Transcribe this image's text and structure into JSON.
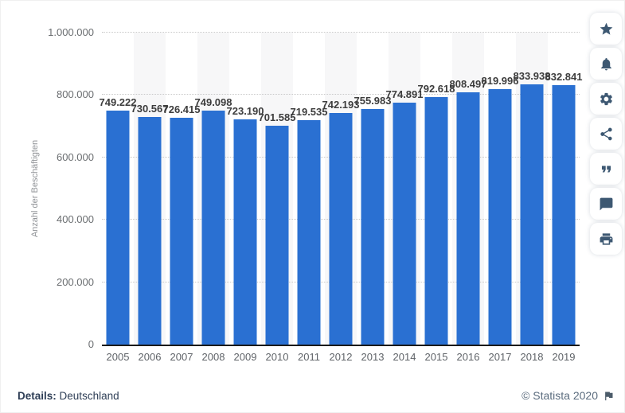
{
  "chart_data": {
    "type": "bar",
    "title": "",
    "categories": [
      "2005",
      "2006",
      "2007",
      "2008",
      "2009",
      "2010",
      "2011",
      "2012",
      "2013",
      "2014",
      "2015",
      "2016",
      "2017",
      "2018",
      "2019"
    ],
    "values": [
      749222,
      730567,
      726415,
      749098,
      723190,
      701585,
      719535,
      742193,
      755983,
      774891,
      792618,
      808497,
      819996,
      833938,
      832841
    ],
    "value_labels": [
      "749.222",
      "730.567",
      "726.415",
      "749.098",
      "723.190",
      "701.585",
      "719.535",
      "742.193",
      "755.983",
      "774.891",
      "792.618",
      "808.497",
      "819.996",
      "833.938",
      "832.841"
    ],
    "xlabel": "",
    "ylabel": "Anzahl der Beschäftigten",
    "ylim": [
      0,
      1000000
    ],
    "yticks": [
      0,
      200000,
      400000,
      600000,
      800000,
      1000000
    ],
    "ytick_labels": [
      "0",
      "200.000",
      "400.000",
      "600.000",
      "800.000",
      "1.000.000"
    ],
    "grid": "horizontal-dotted",
    "legend": "none",
    "bar_color": "#2a70d2",
    "striped_columns": "alternate (2006, 2008, 2010, 2012, 2014, 2016, 2018)"
  },
  "sidebar": {
    "buttons": [
      {
        "name": "favorite",
        "icon": "star-icon"
      },
      {
        "name": "notifications",
        "icon": "bell-icon"
      },
      {
        "name": "settings",
        "icon": "gear-icon"
      },
      {
        "name": "share",
        "icon": "share-icon"
      },
      {
        "name": "cite",
        "icon": "quote-icon"
      },
      {
        "name": "comment",
        "icon": "comment-icon"
      },
      {
        "name": "print",
        "icon": "print-icon"
      }
    ]
  },
  "footer": {
    "details_label": "Details:",
    "details_value": "Deutschland",
    "copyright": "© Statista 2020",
    "flag_icon": "flag-icon"
  },
  "colors": {
    "bar": "#2a70d2",
    "value_label": "#3d3d3d",
    "axis_text": "#6a6d70",
    "gridline": "#c8c8c8",
    "icon": "#3d5872",
    "footer_text": "#2e3e56",
    "copyright_text": "#5b6c7e"
  }
}
